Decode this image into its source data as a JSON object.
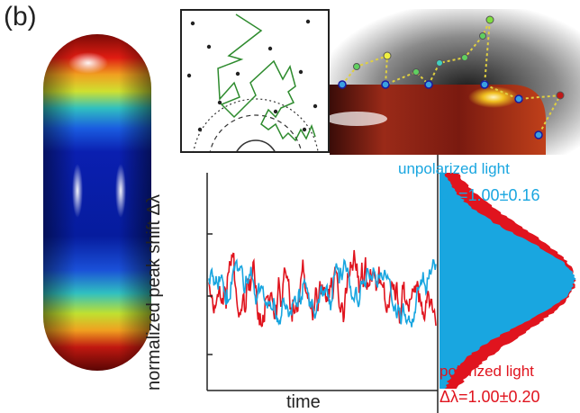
{
  "figure": {
    "panel_label": "(b)",
    "colors": {
      "polarized": "#e0141e",
      "unpolarized": "#19a6e0",
      "walk": "#2e8b2e"
    }
  },
  "plot": {
    "xlabel": "time",
    "ylabel": "normalized peak shift Δλ"
  },
  "legend": {
    "unpolarized_label": "unpolarized light",
    "unpolarized_value": "Δλ=1.00±0.16",
    "polarized_label": "polarized light",
    "polarized_value": "Δλ=1.00±0.20"
  },
  "chart_data": {
    "type": "line",
    "xlabel": "time",
    "ylabel": "normalized peak shift Δλ",
    "series": [
      {
        "name": "polarized light",
        "std": 0.2
      },
      {
        "name": "unpolarized light",
        "std": 0.16
      }
    ],
    "histogram": {
      "mean": 1.0
    }
  }
}
